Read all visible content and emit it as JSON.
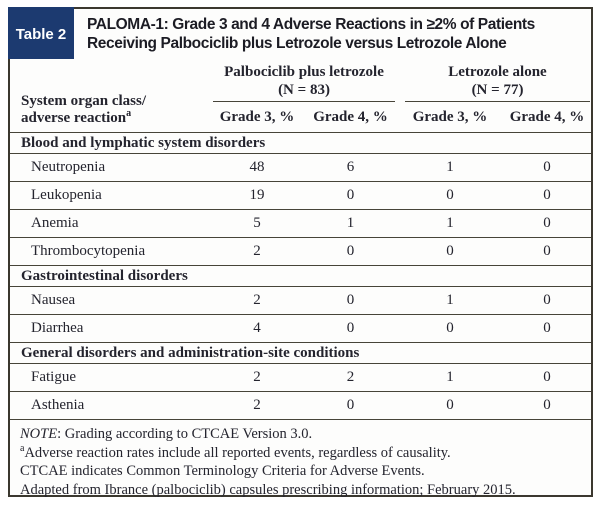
{
  "colors": {
    "accent_navy": "#1c3a70"
  },
  "titlebar": {
    "table_label": "Table 2",
    "title_line1": "PALOMA-1: Grade 3 and 4 Adverse Reactions in ≥2% of Patients",
    "title_line2": "Receiving Palbociclib plus Letrozole versus Letrozole Alone"
  },
  "header": {
    "row_label_line1": "System organ class/",
    "row_label_line2": "adverse reaction",
    "row_label_sup": "a",
    "groups": [
      {
        "name": "Palbociclib plus letrozole",
        "n": "(N = 83)",
        "cols": [
          "Grade 3, %",
          "Grade 4, %"
        ]
      },
      {
        "name": "Letrozole alone",
        "n": "(N = 77)",
        "cols": [
          "Grade 3, %",
          "Grade 4, %"
        ]
      }
    ]
  },
  "sections": [
    {
      "name": "Blood and lymphatic system disorders",
      "rows": [
        {
          "label": "Neutropenia",
          "values": [
            "48",
            "6",
            "1",
            "0"
          ]
        },
        {
          "label": "Leukopenia",
          "values": [
            "19",
            "0",
            "0",
            "0"
          ]
        },
        {
          "label": "Anemia",
          "values": [
            "5",
            "1",
            "1",
            "0"
          ]
        },
        {
          "label": "Thrombocytopenia",
          "values": [
            "2",
            "0",
            "0",
            "0"
          ]
        }
      ]
    },
    {
      "name": "Gastrointestinal disorders",
      "rows": [
        {
          "label": "Nausea",
          "values": [
            "2",
            "0",
            "1",
            "0"
          ]
        },
        {
          "label": "Diarrhea",
          "values": [
            "4",
            "0",
            "0",
            "0"
          ]
        }
      ]
    },
    {
      "name": "General disorders and administration-site conditions",
      "rows": [
        {
          "label": "Fatigue",
          "values": [
            "2",
            "2",
            "1",
            "0"
          ]
        },
        {
          "label": "Asthenia",
          "values": [
            "2",
            "0",
            "0",
            "0"
          ]
        }
      ]
    }
  ],
  "footnotes": {
    "note_italic": "NOTE",
    "note_rest": ": Grading according to CTCAE Version 3.0.",
    "a_sup": "a",
    "a_text": "Adverse reaction rates include all reported events, regardless of causality.",
    "ctcae_text": "CTCAE indicates Common Terminology Criteria for Adverse Events.",
    "adapted_text": "Adapted from Ibrance (palbociclib) capsules prescribing information; February 2015."
  }
}
